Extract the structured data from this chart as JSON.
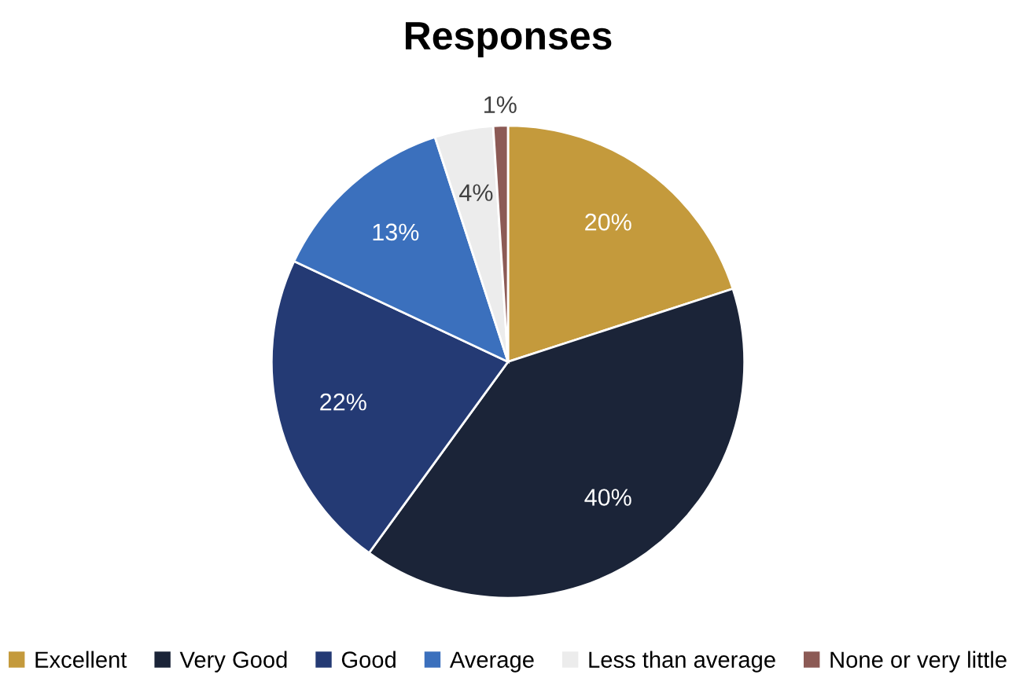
{
  "chart_data": {
    "type": "pie",
    "title": "Responses",
    "categories": [
      "Excellent",
      "Very Good",
      "Good",
      "Average",
      "Less than average",
      "None or very little"
    ],
    "values": [
      20,
      40,
      22,
      13,
      4,
      1
    ],
    "colors": [
      "#c49a3c",
      "#1b2438",
      "#243a74",
      "#3b70bd",
      "#ececec",
      "#8c5a55"
    ],
    "value_labels": [
      "20%",
      "40%",
      "22%",
      "13%",
      "4%",
      "1%"
    ],
    "legend": "bottom"
  }
}
